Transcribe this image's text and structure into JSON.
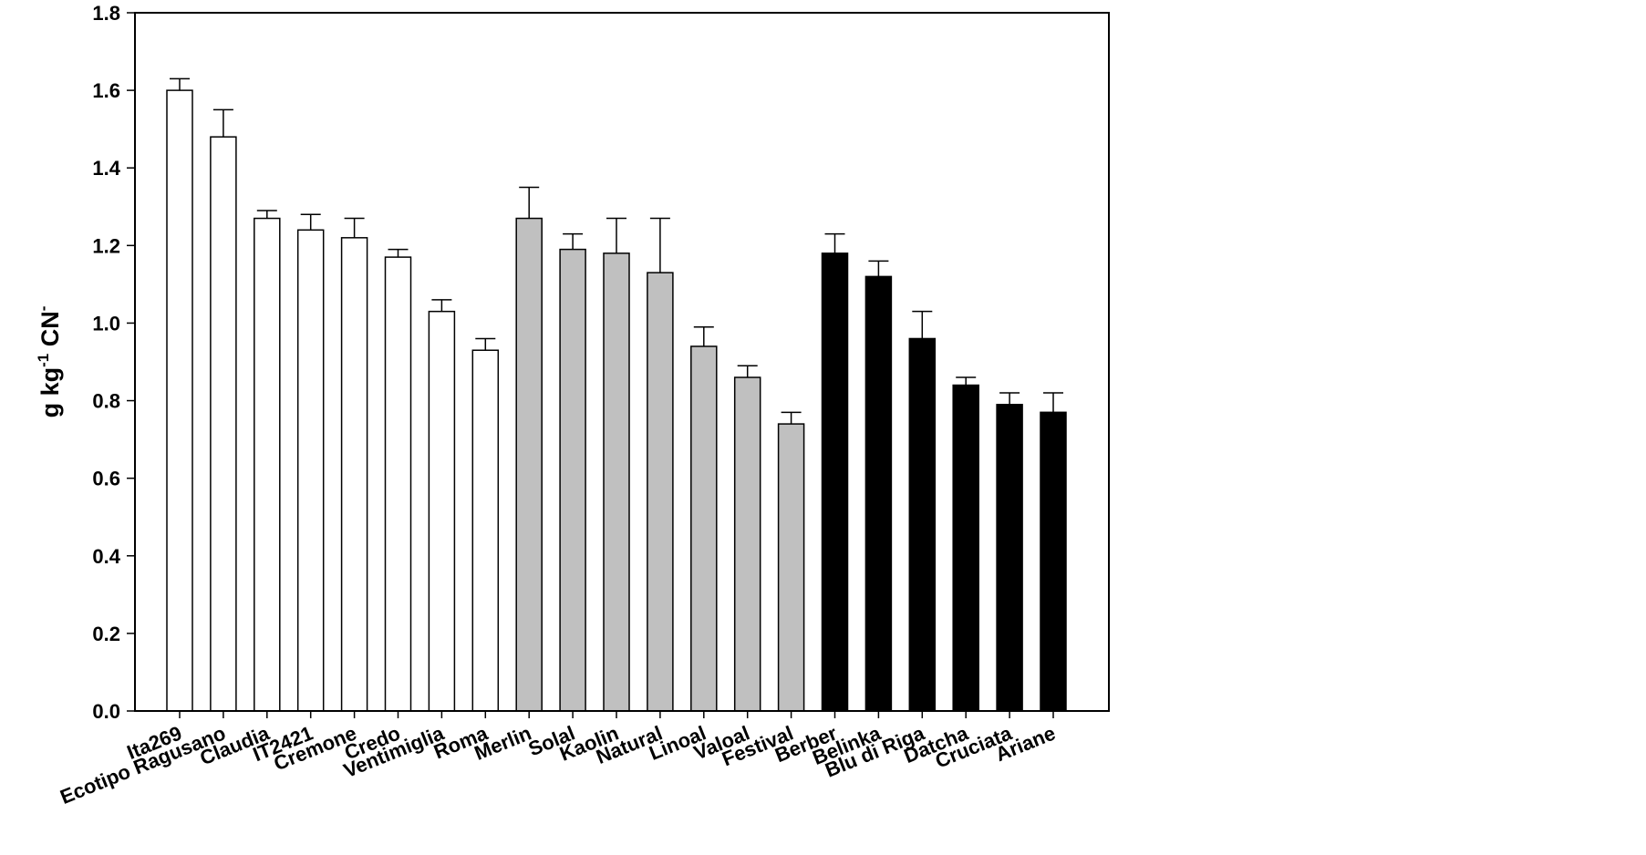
{
  "chart_data": {
    "type": "bar",
    "categories": [
      "Ita269",
      "Ecotipo Ragusano",
      "Claudia",
      "IT2421",
      "Cremone",
      "Credo",
      "Ventimiglia",
      "Roma",
      "Merlin",
      "Solal",
      "Kaolin",
      "Natural",
      "Linoal",
      "Valoal",
      "Festival",
      "Berber",
      "Belinka",
      "Blu di Riga",
      "Datcha",
      "Cruciata",
      "Ariane"
    ],
    "values": [
      1.6,
      1.48,
      1.27,
      1.24,
      1.22,
      1.17,
      1.03,
      0.93,
      1.27,
      1.19,
      1.18,
      1.13,
      0.94,
      0.86,
      0.74,
      1.18,
      1.12,
      0.96,
      0.84,
      0.79,
      0.77
    ],
    "errors": [
      0.03,
      0.07,
      0.02,
      0.04,
      0.05,
      0.02,
      0.03,
      0.03,
      0.08,
      0.04,
      0.09,
      0.14,
      0.05,
      0.03,
      0.03,
      0.05,
      0.04,
      0.07,
      0.02,
      0.03,
      0.05
    ],
    "bar_colors": [
      "#ffffff",
      "#ffffff",
      "#ffffff",
      "#ffffff",
      "#ffffff",
      "#ffffff",
      "#ffffff",
      "#ffffff",
      "#c0c0c0",
      "#c0c0c0",
      "#c0c0c0",
      "#c0c0c0",
      "#c0c0c0",
      "#c0c0c0",
      "#c0c0c0",
      "#000000",
      "#000000",
      "#000000",
      "#000000",
      "#000000",
      "#000000"
    ],
    "yticks": [
      "0.0",
      "0.2",
      "0.4",
      "0.6",
      "0.8",
      "1.0",
      "1.2",
      "1.4",
      "1.6",
      "1.8"
    ],
    "ylim": [
      0,
      1.8
    ],
    "ylabel": {
      "main": "g kg",
      "sup1": "-1",
      "unit": " CN",
      "sup2": "-"
    },
    "title": "",
    "xlabel": "",
    "grid": false,
    "legend": "none"
  }
}
